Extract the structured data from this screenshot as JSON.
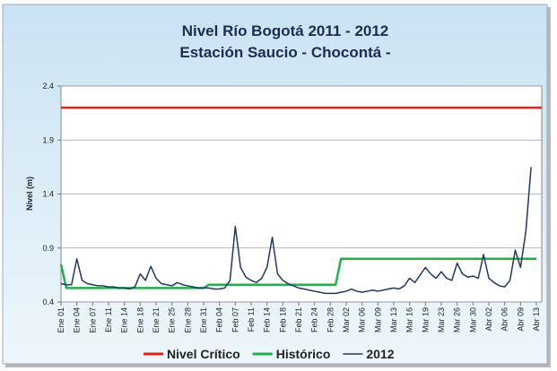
{
  "chart_data": {
    "type": "line",
    "title": "Nivel Río Bogotá  2011 - 2012",
    "subtitle": "Estación Saucio - Chocontá -",
    "y_label": "Nivel (m)",
    "ylim": [
      0.4,
      2.4
    ],
    "yticks": [
      0.4,
      0.9,
      1.4,
      1.9,
      2.4
    ],
    "grid": true,
    "legend": "bottom",
    "reference_line": {
      "name": "Nivel Crítico",
      "value": 2.2,
      "color": "#e3201b"
    },
    "categories": [
      "Ene 01",
      null,
      null,
      "Ene 04",
      null,
      null,
      "Ene 07",
      null,
      null,
      "Ene 11",
      null,
      null,
      "Ene 14",
      null,
      null,
      "Ene 18",
      null,
      null,
      "Ene 21",
      null,
      null,
      "Ene 25",
      null,
      null,
      "Ene 28",
      null,
      null,
      "Ene 31",
      null,
      null,
      "Feb 04",
      null,
      null,
      "Feb 07",
      null,
      null,
      "Feb 11",
      null,
      null,
      "Feb 14",
      null,
      null,
      "Feb 18",
      null,
      null,
      "Feb 21",
      null,
      null,
      "Feb 24",
      null,
      null,
      "Feb 28",
      null,
      null,
      "Mar 02",
      null,
      null,
      "Mar 06",
      null,
      null,
      "Mar 09",
      null,
      null,
      "Mar 13",
      null,
      null,
      "Mar 16",
      null,
      null,
      "Mar 19",
      null,
      null,
      "Mar 23",
      null,
      null,
      "Mar 26",
      null,
      null,
      "Mar 30",
      null,
      null,
      "Abr 02",
      null,
      null,
      "Abr 06",
      null,
      null,
      "Abr 09",
      null,
      null,
      "Abr 13"
    ],
    "series": [
      {
        "name": "Histórico",
        "color": "#21b04b",
        "width": 2.5,
        "values": [
          0.75,
          0.53,
          0.53,
          0.53,
          0.53,
          0.53,
          0.53,
          0.53,
          0.53,
          0.53,
          0.53,
          0.53,
          0.53,
          0.53,
          0.53,
          0.53,
          0.53,
          0.53,
          0.53,
          0.53,
          0.53,
          0.53,
          0.53,
          0.53,
          0.53,
          0.53,
          0.53,
          0.53,
          0.56,
          0.56,
          0.56,
          0.56,
          0.56,
          0.56,
          0.56,
          0.56,
          0.56,
          0.56,
          0.56,
          0.56,
          0.56,
          0.56,
          0.56,
          0.56,
          0.56,
          0.56,
          0.56,
          0.56,
          0.56,
          0.56,
          0.56,
          0.56,
          0.56,
          0.8,
          0.8,
          0.8,
          0.8,
          0.8,
          0.8,
          0.8,
          0.8,
          0.8,
          0.8,
          0.8,
          0.8,
          0.8,
          0.8,
          0.8,
          0.8,
          0.8,
          0.8,
          0.8,
          0.8,
          0.8,
          0.8,
          0.8,
          0.8,
          0.8,
          0.8,
          0.8,
          0.8,
          0.8,
          0.8,
          0.8,
          0.8,
          0.8,
          0.8,
          0.8,
          0.8,
          0.8,
          0.8
        ]
      },
      {
        "name": "2012",
        "color": "#1f3864",
        "width": 1.5,
        "values": [
          0.57,
          0.56,
          0.56,
          0.8,
          0.6,
          0.57,
          0.56,
          0.55,
          0.55,
          0.54,
          0.54,
          0.53,
          0.53,
          0.52,
          0.54,
          0.66,
          0.6,
          0.73,
          0.62,
          0.57,
          0.56,
          0.55,
          0.58,
          0.56,
          0.55,
          0.54,
          0.53,
          0.53,
          0.53,
          0.52,
          0.52,
          0.53,
          0.6,
          1.1,
          0.72,
          0.63,
          0.6,
          0.58,
          0.62,
          0.72,
          1.0,
          0.66,
          0.6,
          0.57,
          0.55,
          0.53,
          0.52,
          0.51,
          0.5,
          0.49,
          0.48,
          0.48,
          0.48,
          0.49,
          0.5,
          0.52,
          0.5,
          0.49,
          0.5,
          0.51,
          0.5,
          0.51,
          0.52,
          0.53,
          0.52,
          0.55,
          0.62,
          0.58,
          0.65,
          0.72,
          0.66,
          0.62,
          0.68,
          0.62,
          0.6,
          0.76,
          0.66,
          0.63,
          0.64,
          0.62,
          0.84,
          0.62,
          0.58,
          0.55,
          0.54,
          0.6,
          0.88,
          0.72,
          1.05,
          1.65,
          null
        ]
      }
    ]
  }
}
